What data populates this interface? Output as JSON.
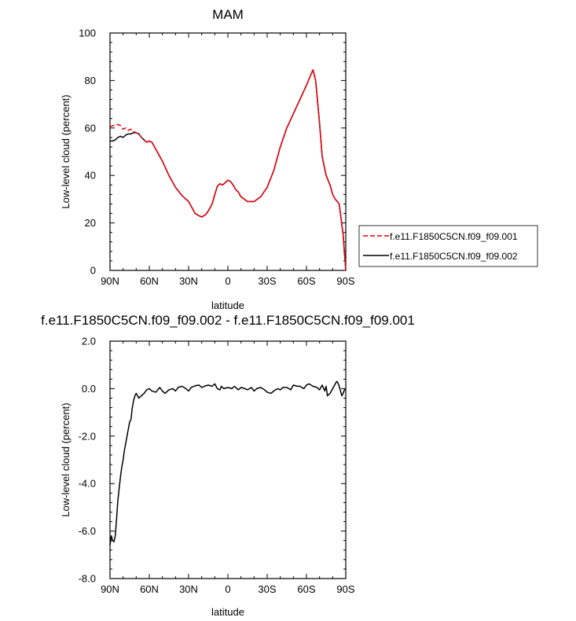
{
  "chart_data": [
    {
      "type": "line",
      "title": "MAM",
      "xlabel": "latitude",
      "ylabel": "Low-level cloud (percent)",
      "xlim": [
        90,
        -90
      ],
      "ylim": [
        0,
        100
      ],
      "xticks": [
        90,
        60,
        30,
        0,
        -30,
        -60,
        -90
      ],
      "xtick_labels": [
        "90N",
        "60N",
        "30N",
        "0",
        "30S",
        "60S",
        "90S"
      ],
      "yticks": [
        0,
        20,
        40,
        60,
        80,
        100
      ],
      "ytick_labels": [
        "0",
        "20",
        "40",
        "60",
        "80",
        "100"
      ],
      "legend_position": "right",
      "series": [
        {
          "name": "f.e11.F1850C5CN.f09_f09.001",
          "color": "#e8000b",
          "dash": "dashed",
          "x": [
            90,
            88,
            86,
            84,
            82,
            80,
            78,
            76,
            74,
            72,
            70,
            68,
            66,
            64,
            62,
            60,
            58,
            56,
            54,
            50,
            45,
            40,
            35,
            30,
            25,
            22,
            20,
            17,
            15,
            12,
            10,
            8,
            6,
            4,
            2,
            0,
            -2,
            -4,
            -6,
            -8,
            -10,
            -15,
            -20,
            -25,
            -30,
            -35,
            -40,
            -45,
            -50,
            -55,
            -60,
            -63,
            -65,
            -67,
            -70,
            -72,
            -75,
            -78,
            -80,
            -82,
            -85,
            -88,
            -90
          ],
          "y": [
            60.5,
            61,
            61,
            61.5,
            61,
            59.5,
            60,
            59,
            59.5,
            58.5,
            58,
            57.5,
            56,
            55,
            54,
            54.5,
            54,
            52,
            50,
            46,
            40,
            35,
            31.5,
            29,
            24,
            23,
            22.5,
            23.5,
            25,
            28,
            32,
            35.5,
            36.5,
            36,
            37,
            38,
            37.5,
            36,
            34,
            33,
            31,
            29,
            29,
            31,
            35,
            42,
            52,
            60,
            66,
            72,
            78,
            82,
            84.5,
            80,
            62,
            48,
            40,
            36,
            32,
            30,
            28,
            15,
            0
          ]
        },
        {
          "name": "f.e11.F1850C5CN.f09_f09.002",
          "color": "#000000",
          "dash": "solid",
          "x": [
            90,
            88,
            86,
            84,
            82,
            80,
            78,
            76,
            74,
            72,
            70,
            68,
            66,
            64,
            62,
            60,
            58,
            56,
            54,
            50,
            45,
            40,
            35,
            30,
            25,
            22,
            20,
            17,
            15,
            12,
            10,
            8,
            6,
            4,
            2,
            0,
            -2,
            -4,
            -6,
            -8,
            -10,
            -15,
            -20,
            -25,
            -30,
            -35,
            -40,
            -45,
            -50,
            -55,
            -60,
            -63,
            -65,
            -67,
            -70,
            -72,
            -75,
            -78,
            -80,
            -82,
            -85,
            -88,
            -90
          ],
          "y": [
            54.5,
            54.5,
            55,
            56,
            56.5,
            56,
            57,
            57.5,
            57.5,
            58,
            58,
            57.5,
            56,
            55,
            54,
            54.5,
            54,
            52,
            50,
            46,
            40,
            35,
            31.5,
            29,
            24,
            23,
            22.5,
            23.5,
            25,
            28,
            32,
            35.5,
            36.5,
            36,
            37,
            38,
            37.5,
            36,
            34,
            33,
            31,
            29,
            29,
            31,
            35,
            42,
            52,
            60,
            66,
            72,
            78,
            82,
            84.5,
            80,
            62,
            48,
            40,
            36,
            32,
            30,
            28,
            15,
            0
          ]
        }
      ]
    },
    {
      "type": "line",
      "title": "f.e11.F1850C5CN.f09_f09.002 - f.e11.F1850C5CN.f09_f09.001",
      "xlabel": "latitude",
      "ylabel": "Low-level cloud (percent)",
      "xlim": [
        90,
        -90
      ],
      "ylim": [
        -8,
        2
      ],
      "xticks": [
        90,
        60,
        30,
        0,
        -30,
        -60,
        -90
      ],
      "xtick_labels": [
        "90N",
        "60N",
        "30N",
        "0",
        "30S",
        "60S",
        "90S"
      ],
      "yticks": [
        -8,
        -6,
        -4,
        -2,
        0,
        2
      ],
      "ytick_labels": [
        "-8.0",
        "-6.0",
        "-4.0",
        "-2.0",
        "0.0",
        "2.0"
      ],
      "series": [
        {
          "color": "#000000",
          "dash": "solid",
          "x": [
            90,
            89,
            88,
            87,
            86,
            85,
            84,
            83,
            82,
            81,
            80,
            79,
            78,
            77,
            76,
            75,
            74,
            73,
            72,
            71,
            70,
            69,
            68,
            67,
            66,
            64,
            62,
            60,
            58,
            55,
            52,
            50,
            48,
            45,
            42,
            40,
            38,
            35,
            32,
            30,
            28,
            25,
            22,
            20,
            18,
            15,
            12,
            10,
            8,
            6,
            5,
            3,
            0,
            -3,
            -5,
            -8,
            -10,
            -13,
            -15,
            -18,
            -20,
            -22,
            -25,
            -28,
            -30,
            -33,
            -35,
            -38,
            -40,
            -42,
            -45,
            -48,
            -50,
            -53,
            -55,
            -58,
            -60,
            -62,
            -65,
            -68,
            -70,
            -72,
            -74,
            -75,
            -76,
            -78,
            -80,
            -82,
            -83,
            -84,
            -85,
            -86,
            -87,
            -88,
            -89,
            -90
          ],
          "y": [
            -6.6,
            -6.2,
            -6.4,
            -6.45,
            -6.2,
            -5.5,
            -4.7,
            -4.2,
            -3.7,
            -3.3,
            -3.0,
            -2.6,
            -2.3,
            -2.0,
            -1.7,
            -1.4,
            -1.3,
            -0.8,
            -0.5,
            -0.3,
            -0.2,
            -0.3,
            -0.4,
            -0.35,
            -0.3,
            -0.2,
            -0.05,
            0.0,
            -0.1,
            -0.15,
            0.05,
            -0.1,
            -0.2,
            -0.05,
            0.0,
            -0.1,
            0.05,
            0.1,
            0.0,
            -0.1,
            0.05,
            0.12,
            0.15,
            0.05,
            0.1,
            0.15,
            0.1,
            0.2,
            0.0,
            -0.05,
            0.1,
            0.0,
            0.05,
            0.0,
            0.1,
            -0.05,
            0.05,
            0.0,
            -0.05,
            0.05,
            -0.1,
            0.0,
            0.05,
            -0.05,
            -0.15,
            -0.2,
            -0.1,
            0.0,
            -0.05,
            0.05,
            0.05,
            -0.05,
            0.15,
            0.1,
            0.1,
            0.0,
            0.15,
            0.2,
            0.1,
            0.05,
            -0.05,
            0.15,
            -0.1,
            0.1,
            -0.3,
            -0.2,
            0.0,
            0.2,
            0.3,
            0.25,
            0.1,
            -0.1,
            -0.3,
            -0.2,
            -0.05,
            -0.05
          ]
        }
      ]
    }
  ]
}
